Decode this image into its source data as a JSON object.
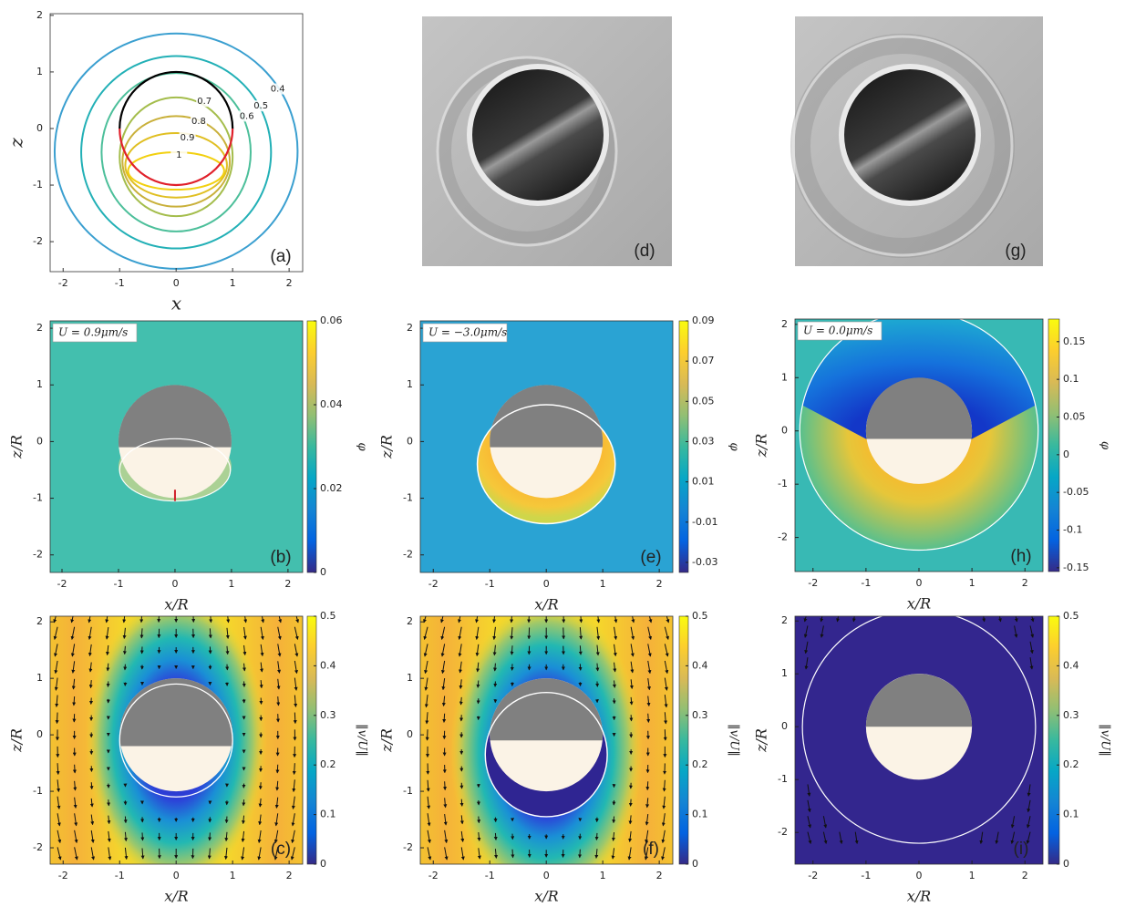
{
  "chart_data": [
    {
      "type": "contour",
      "label": "(a)",
      "xlabel": "x",
      "ylabel": "z",
      "xlim": [
        -2.23,
        2.24
      ],
      "ylim": [
        -2.53,
        2.03
      ],
      "xticks": [
        -2,
        -1,
        0,
        1,
        2
      ],
      "yticks": [
        -2,
        -1,
        0,
        1,
        2
      ],
      "levels": [
        0.4,
        0.5,
        0.6,
        0.7,
        0.8,
        0.9,
        1
      ],
      "level_colors": [
        "#3a9fd0",
        "#22b0b6",
        "#4cbf9a",
        "#a4bd4c",
        "#c9b03a",
        "#e0bf22",
        "#f2d010"
      ]
    },
    {
      "type": "image",
      "label": "(d)"
    },
    {
      "type": "image",
      "label": "(g)"
    },
    {
      "type": "heatmap",
      "label": "(b)",
      "annotation": "U = 0.9μm/s",
      "xlabel": "x/R",
      "ylabel": "z/R",
      "xlim": [
        -2.21,
        2.26
      ],
      "ylim": [
        -2.31,
        2.13
      ],
      "xticks": [
        -2,
        -1,
        0,
        1,
        2
      ],
      "yticks": [
        -2,
        -1,
        0,
        1,
        2
      ],
      "clim": [
        0,
        0.06
      ],
      "cticks": [
        0,
        0.02,
        0.04,
        0.06
      ],
      "clabel": "φ",
      "colormap": [
        "#352a87",
        "#0363e1",
        "#1485d4",
        "#06a7c6",
        "#38b99e",
        "#92bf73",
        "#d9ba56",
        "#fcce2e",
        "#f9fb0e"
      ]
    },
    {
      "type": "heatmap",
      "label": "(e)",
      "annotation": "U = −3.0μm/s",
      "xlabel": "x/R",
      "ylabel": "z/R",
      "xlim": [
        -2.23,
        2.24
      ],
      "ylim": [
        -2.31,
        2.13
      ],
      "xticks": [
        -2,
        -1,
        0,
        1,
        2
      ],
      "yticks": [
        -2,
        -1,
        0,
        1,
        2
      ],
      "clim": [
        -0.035,
        0.09
      ],
      "cticks": [
        -0.03,
        -0.01,
        0.01,
        0.03,
        0.05,
        0.07,
        0.09
      ],
      "clabel": "φ",
      "colormap": [
        "#352a87",
        "#0363e1",
        "#1485d4",
        "#06a7c6",
        "#38b99e",
        "#92bf73",
        "#d9ba56",
        "#fcce2e",
        "#f9fb0e"
      ]
    },
    {
      "type": "heatmap",
      "label": "(h)",
      "annotation": "U = 0.0μm/s",
      "xlabel": "x/R",
      "ylabel": "z/R",
      "xlim": [
        -2.34,
        2.34
      ],
      "ylim": [
        -2.64,
        2.1
      ],
      "xticks": [
        -2,
        -1,
        0,
        1,
        2
      ],
      "yticks": [
        -2,
        -1,
        0,
        1,
        2
      ],
      "clim": [
        -0.155,
        0.18
      ],
      "cticks": [
        -0.15,
        -0.1,
        -0.05,
        0,
        0.05,
        0.1,
        0.15
      ],
      "clabel": "φ",
      "colormap": [
        "#352a87",
        "#0363e1",
        "#1485d4",
        "#06a7c6",
        "#38b99e",
        "#92bf73",
        "#d9ba56",
        "#fcce2e",
        "#f9fb0e"
      ]
    },
    {
      "type": "heatmap",
      "label": "(c)",
      "xlabel": "x/R",
      "ylabel": "z/R",
      "xlim": [
        -2.23,
        2.24
      ],
      "ylim": [
        -2.29,
        2.1
      ],
      "xticks": [
        -2,
        -1,
        0,
        1,
        2
      ],
      "yticks": [
        -2,
        -1,
        0,
        1,
        2
      ],
      "clim": [
        0,
        0.5
      ],
      "cticks": [
        0,
        0.1,
        0.2,
        0.3,
        0.4,
        0.5
      ],
      "clabel": "‖v/U‖",
      "colormap": [
        "#352a87",
        "#0363e1",
        "#1485d4",
        "#06a7c6",
        "#38b99e",
        "#92bf73",
        "#d9ba56",
        "#fcce2e",
        "#f9fb0e"
      ]
    },
    {
      "type": "heatmap",
      "label": "(f)",
      "xlabel": "x/R",
      "ylabel": "z/R",
      "xlim": [
        -2.23,
        2.24
      ],
      "ylim": [
        -2.29,
        2.1
      ],
      "xticks": [
        -2,
        -1,
        0,
        1,
        2
      ],
      "yticks": [
        -2,
        -1,
        0,
        1,
        2
      ],
      "clim": [
        0,
        0.5
      ],
      "cticks": [
        0,
        0.1,
        0.2,
        0.3,
        0.4,
        0.5
      ],
      "clabel": "‖v/U‖",
      "colormap": [
        "#352a87",
        "#0363e1",
        "#1485d4",
        "#06a7c6",
        "#38b99e",
        "#92bf73",
        "#d9ba56",
        "#fcce2e",
        "#f9fb0e"
      ]
    },
    {
      "type": "heatmap",
      "label": "(i)",
      "xlabel": "x/R",
      "ylabel": "z/R",
      "xlim": [
        -2.34,
        2.34
      ],
      "ylim": [
        -2.6,
        2.09
      ],
      "xticks": [
        -2,
        -1,
        0,
        1,
        2
      ],
      "yticks": [
        -2,
        -1,
        0,
        1,
        2
      ],
      "clim": [
        0,
        0.5
      ],
      "cticks": [
        0,
        0.1,
        0.2,
        0.3,
        0.4,
        0.5
      ],
      "clabel": "‖v/U‖",
      "colormap": [
        "#352a87",
        "#0363e1",
        "#1485d4",
        "#06a7c6",
        "#38b99e",
        "#92bf73",
        "#d9ba56",
        "#fcce2e",
        "#f9fb0e"
      ]
    }
  ]
}
